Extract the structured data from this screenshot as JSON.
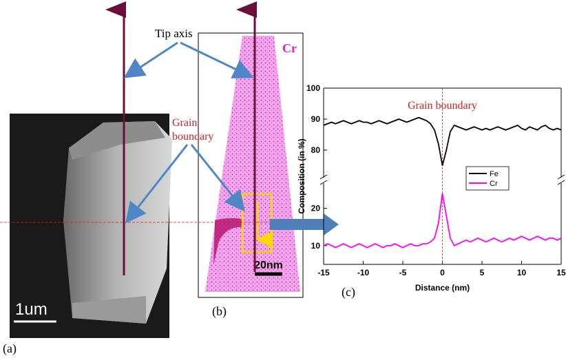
{
  "figure": {
    "tip_axis": "Tip axis",
    "grain_label": [
      "Grain",
      "boundary"
    ],
    "element": "Cr",
    "scale_b": "20nm",
    "scale_a": "1um",
    "panel_a": "(a)",
    "panel_b": "(b)",
    "panel_c": "(c)"
  },
  "chart_data": {
    "type": "line",
    "annotation": "Grain boundary",
    "x_label": "Distance (nm)",
    "y_label": "Composition (in %)",
    "xlim": [
      -15,
      15
    ],
    "xticks": [
      -15,
      -10,
      -5,
      0,
      5,
      10,
      15
    ],
    "vline": 0,
    "legend": "right",
    "axis_segments": [
      {
        "ylim": [
          5,
          26
        ],
        "yticks": [
          10,
          20
        ]
      },
      {
        "ylim": [
          72,
          100
        ],
        "yticks": [
          80,
          90,
          100
        ]
      }
    ],
    "x": [
      -15,
      -14.5,
      -14,
      -13.5,
      -13,
      -12.5,
      -12,
      -11.5,
      -11,
      -10.5,
      -10,
      -9.5,
      -9,
      -8.5,
      -8,
      -7.5,
      -7,
      -6.5,
      -6,
      -5.5,
      -5,
      -4.5,
      -4,
      -3.5,
      -3,
      -2.5,
      -2,
      -1.5,
      -1,
      -0.5,
      0,
      0.5,
      1,
      1.5,
      2,
      2.5,
      3,
      3.5,
      4,
      4.5,
      5,
      5.5,
      6,
      6.5,
      7,
      7.5,
      8,
      8.5,
      9,
      9.5,
      10,
      10.5,
      11,
      11.5,
      12,
      12.5,
      13,
      13.5,
      14,
      14.5,
      15
    ],
    "series": [
      {
        "name": "Fe",
        "color": "#000000",
        "values": [
          88,
          88.5,
          89,
          88.5,
          89,
          89.5,
          89,
          88.5,
          89,
          89.5,
          89,
          89,
          88.5,
          89,
          89.5,
          89,
          88.5,
          89,
          89.5,
          90,
          89.5,
          89,
          89.5,
          90,
          90.5,
          90,
          89.5,
          88.5,
          86.5,
          82,
          75,
          80,
          86,
          88,
          87.5,
          87,
          86.5,
          87,
          87.5,
          87,
          86.5,
          87,
          86.5,
          87,
          87.5,
          87,
          86.5,
          87,
          87.5,
          88,
          87,
          86.5,
          87.5,
          87,
          86.5,
          87.5,
          88,
          87,
          86.5,
          87,
          86.5
        ]
      },
      {
        "name": "Cr",
        "color": "#ff00ff",
        "values": [
          10,
          10.5,
          10,
          9.5,
          10,
          10.5,
          10,
          9.5,
          10,
          10.5,
          10,
          9.5,
          10,
          10.5,
          10,
          9.5,
          10,
          10,
          10.5,
          10,
          9.5,
          10,
          10.5,
          10,
          10,
          10.5,
          10.5,
          11,
          12,
          16,
          24,
          18,
          12,
          10,
          10.5,
          11,
          11.5,
          11,
          11.5,
          12,
          11.5,
          11,
          11.5,
          12,
          11.5,
          11,
          11.5,
          12,
          11.5,
          12,
          12.5,
          12,
          11.5,
          12,
          12.5,
          12,
          11.5,
          12,
          12,
          11.5,
          12
        ]
      }
    ]
  }
}
